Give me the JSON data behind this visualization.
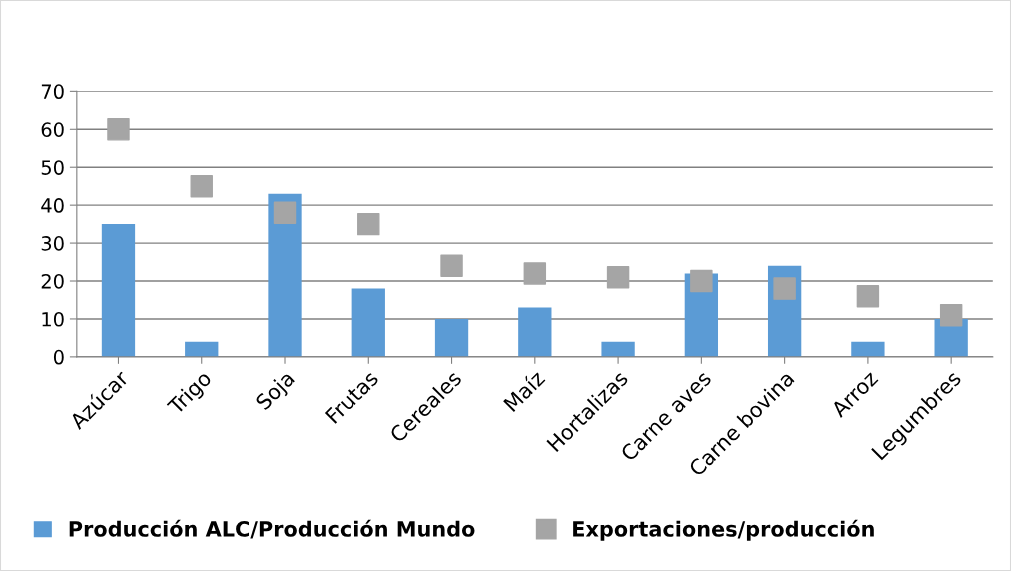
{
  "chart_data": {
    "type": "bar",
    "categories": [
      "Azúcar",
      "Trigo",
      "Soja",
      "Frutas",
      "Cereales",
      "Maíz",
      "Hortalizas",
      "Carne aves",
      "Carne bovina",
      "Arroz",
      "Legumbres"
    ],
    "series": [
      {
        "name": "Producción ALC/Producción Mundo",
        "color": "#5b9bd5",
        "values": [
          35,
          4,
          43,
          18,
          10,
          13,
          4,
          22,
          24,
          4,
          10
        ]
      },
      {
        "name": "Exportaciones/producción",
        "type": "scatter",
        "color": "#a5a5a5",
        "values": [
          60,
          45,
          38,
          35,
          24,
          22,
          21,
          20,
          18,
          16,
          11
        ]
      }
    ],
    "ylim": [
      0,
      70
    ],
    "yticks": [
      0,
      10,
      20,
      30,
      40,
      50,
      60,
      70
    ],
    "grid": "y",
    "legend": "bottom",
    "marker": "square"
  }
}
